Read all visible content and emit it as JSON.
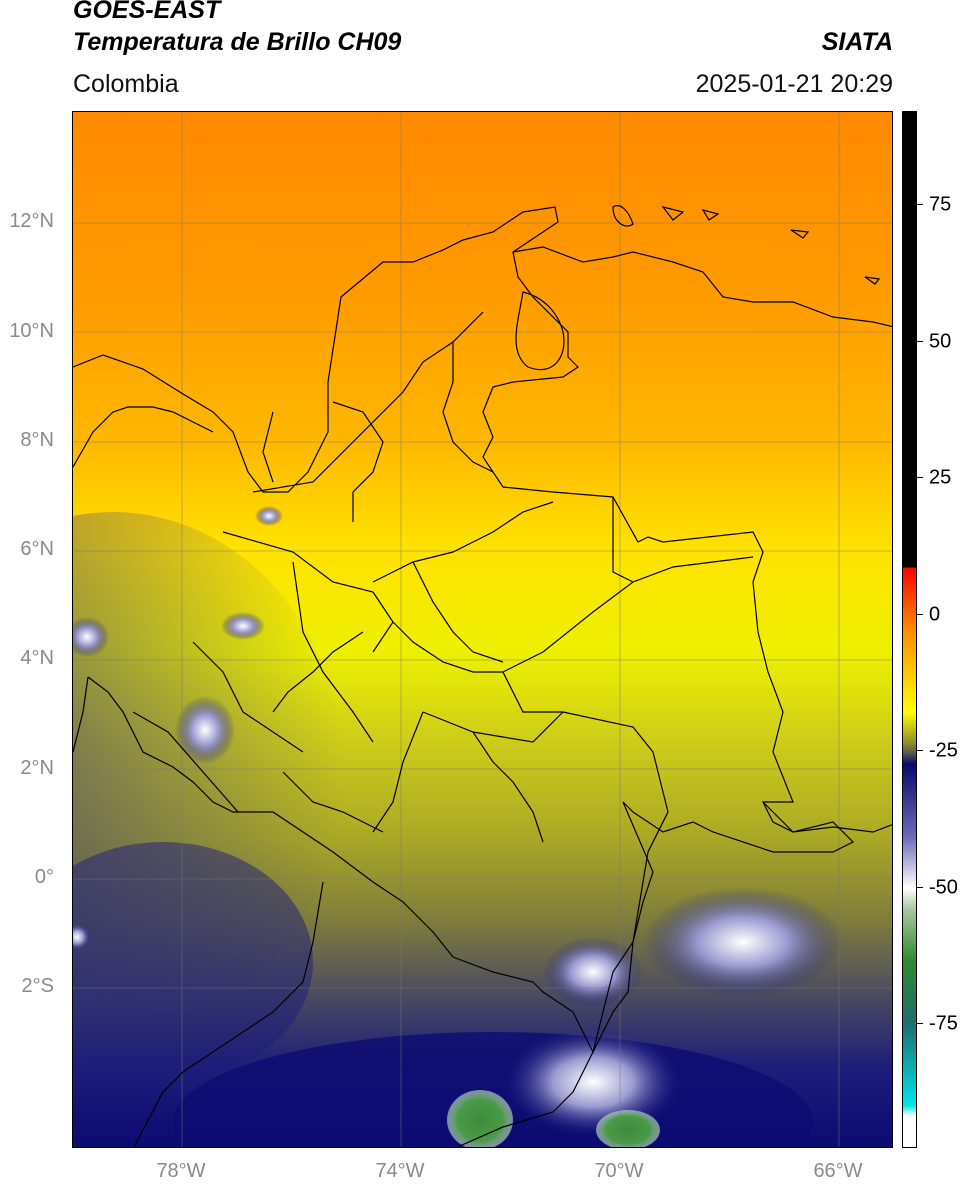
{
  "header": {
    "title_line1": "GOES-EAST",
    "title_line2": "Temperatura de Brillo CH09",
    "brand": "SIATA",
    "region": "Colombia",
    "datetime": "2025-01-21 20:29"
  },
  "map": {
    "lat_labels": [
      "12°N",
      "10°N",
      "8°N",
      "6°N",
      "4°N",
      "2°N",
      "0°",
      "2°S"
    ],
    "lon_labels": [
      "78°W",
      "74°W",
      "70°W",
      "66°W"
    ],
    "extent": {
      "lon_min": -79.9,
      "lon_max": -64.9,
      "lat_min": -5.0,
      "lat_max": 14.0
    },
    "gridlines": true
  },
  "colorbar": {
    "tick_labels": [
      "75",
      "50",
      "25",
      "0",
      "-25",
      "-50",
      "-75"
    ],
    "range": [
      -95,
      95
    ],
    "colors": {
      "top_black": "#000000",
      "red": "#ff0000",
      "orange": "#ff8c00",
      "yellow": "#ffff00",
      "olive": "#8c8c2a",
      "dark_navy": "#0a0a6e",
      "white": "#ffffff",
      "green": "#2e8b2e",
      "cyan": "#00e5e5"
    }
  }
}
